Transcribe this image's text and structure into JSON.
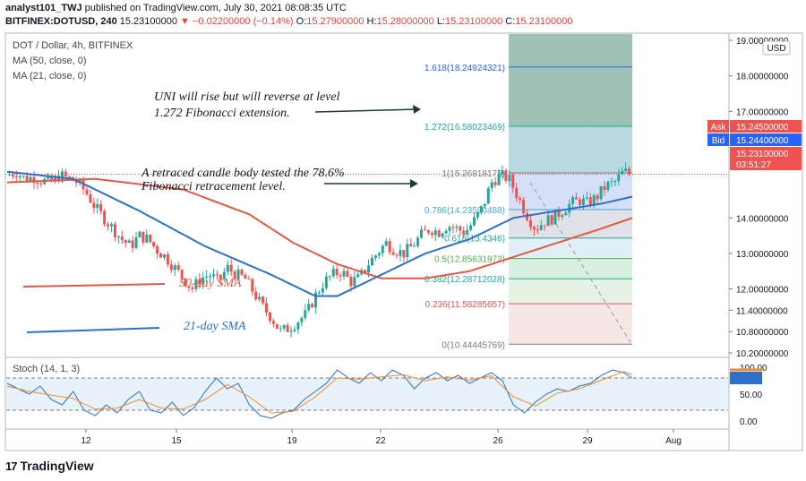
{
  "header": {
    "author": "analyst101_TWJ",
    "published_text": "published on TradingView.com, July 30, 2021 08:08:35 UTC",
    "symbol": "BITFINEX:DOTUSD, 240",
    "price": "15.23100000",
    "change": "▼ −0.02200000 (−0.14%)",
    "ohlc": {
      "o_label": "O:",
      "o": "15.27900000",
      "h_label": "H:",
      "h": "15.28000000",
      "l_label": "L:",
      "l": "15.23100000",
      "c_label": "C:",
      "c": "15.23100000"
    }
  },
  "legend": {
    "title": "DOT / Dollar, 4h, BITFINEX",
    "ma50": "MA (50, close, 0)",
    "ma21": "MA (21, close, 0)"
  },
  "annotations": {
    "uni_line1": "UNI will rise but will reverse at level",
    "uni_line2": "1.272 Fibonacci extension.",
    "retr_line1": "A retraced candle body tested the 78.6%",
    "retr_line2": "Fibonacci retracement level.",
    "sma50": "50-day SMA",
    "sma21": "21-day SMA"
  },
  "price_axis": {
    "currency": "USD",
    "ticks": [
      "19.00000000",
      "18.00000000",
      "17.00000000",
      "15.23100000",
      "14.00000000",
      "13.00000000",
      "12.00000000",
      "11.40000000",
      "10.80000000",
      "10.20000000"
    ],
    "ask_label": "Ask",
    "ask": "15.24500000",
    "bid_label": "Bid",
    "bid": "15.24400000",
    "last": "15.23100000",
    "countdown": "03:51:27"
  },
  "stoch": {
    "title": "Stoch (14, 1, 3)",
    "ticks": [
      "100.00",
      "50.00",
      "0.00"
    ]
  },
  "time_axis": [
    "12",
    "15",
    "19",
    "22",
    "26",
    "29",
    "Aug"
  ],
  "logo": {
    "mark": "17",
    "text": "TradingView"
  },
  "colors": {
    "up": "#26a69a",
    "down": "#ef5350",
    "ma50": "#e05a48",
    "ma21": "#2d6fcb",
    "stoch_k": "#2d6fcb",
    "stoch_d": "#f08b2c"
  },
  "chart_data": {
    "type": "candlestick",
    "x_ticks": [
      "12",
      "15",
      "19",
      "22",
      "26",
      "29",
      "Aug"
    ],
    "y_range": [
      10.1,
      19.0
    ],
    "fibonacci": [
      {
        "level": "1.618",
        "price": 18.24924321,
        "label": "1.618(18.24924321)"
      },
      {
        "level": "1.272",
        "price": 16.58023469,
        "label": "1.272(16.58023469)"
      },
      {
        "level": "1",
        "price": 15.26818175,
        "label": "1(15.26818175)"
      },
      {
        "level": "0.786",
        "price": 14.23590488,
        "label": "0.786(14.23590488)"
      },
      {
        "level": "0.618",
        "price": 13.4346,
        "label": "0.618(13.4346)"
      },
      {
        "level": "0.5",
        "price": 12.85631972,
        "label": "0.5(12.85631972)"
      },
      {
        "level": "0.382",
        "price": 12.28712028,
        "label": "0.382(12.28712028)"
      },
      {
        "level": "0.236",
        "price": 11.58285657,
        "label": "0.236(11.58285657)"
      },
      {
        "level": "0",
        "price": 10.44445769,
        "label": "0(10.44445769)"
      }
    ],
    "close_path": [
      [
        0,
        15.2
      ],
      [
        4,
        15.3
      ],
      [
        8,
        15.1
      ],
      [
        12,
        15.15
      ],
      [
        16,
        15.05
      ],
      [
        20,
        15.0
      ],
      [
        24,
        15.2
      ],
      [
        28,
        15.1
      ],
      [
        32,
        15.0
      ],
      [
        36,
        14.7
      ],
      [
        40,
        14.3
      ],
      [
        44,
        14.0
      ],
      [
        48,
        13.7
      ],
      [
        52,
        13.4
      ],
      [
        56,
        13.2
      ],
      [
        60,
        13.5
      ],
      [
        64,
        13.4
      ],
      [
        68,
        13.1
      ],
      [
        72,
        12.9
      ],
      [
        76,
        12.6
      ],
      [
        80,
        12.3
      ],
      [
        84,
        12.0
      ],
      [
        88,
        12.3
      ],
      [
        92,
        12.4
      ],
      [
        96,
        12.2
      ],
      [
        100,
        12.6
      ],
      [
        104,
        12.4
      ],
      [
        108,
        12.3
      ],
      [
        112,
        11.9
      ],
      [
        116,
        11.5
      ],
      [
        120,
        11.2
      ],
      [
        124,
        10.8
      ],
      [
        128,
        10.9
      ],
      [
        132,
        11.1
      ],
      [
        136,
        11.3
      ],
      [
        140,
        11.8
      ],
      [
        144,
        12.2
      ],
      [
        148,
        12.4
      ],
      [
        152,
        12.5
      ],
      [
        156,
        12.2
      ],
      [
        160,
        12.3
      ],
      [
        164,
        12.7
      ],
      [
        168,
        13.0
      ],
      [
        172,
        13.3
      ],
      [
        176,
        13.1
      ],
      [
        180,
        13.0
      ],
      [
        184,
        13.2
      ],
      [
        188,
        13.5
      ],
      [
        192,
        13.7
      ],
      [
        196,
        13.6
      ],
      [
        200,
        13.8
      ],
      [
        204,
        13.7
      ],
      [
        208,
        13.6
      ],
      [
        212,
        13.9
      ],
      [
        216,
        14.3
      ],
      [
        220,
        15.0
      ],
      [
        224,
        15.2
      ],
      [
        228,
        15.1
      ],
      [
        232,
        14.6
      ],
      [
        236,
        14.1
      ],
      [
        240,
        13.7
      ],
      [
        244,
        13.9
      ],
      [
        248,
        14.0
      ],
      [
        252,
        14.2
      ],
      [
        256,
        14.4
      ],
      [
        260,
        14.5
      ],
      [
        264,
        14.4
      ],
      [
        268,
        14.6
      ],
      [
        272,
        14.9
      ],
      [
        276,
        15.0
      ],
      [
        280,
        15.3
      ],
      [
        284,
        15.23
      ]
    ],
    "ma50_path": [
      [
        0,
        15.0
      ],
      [
        40,
        15.1
      ],
      [
        80,
        14.8
      ],
      [
        110,
        14.1
      ],
      [
        130,
        13.3
      ],
      [
        150,
        12.7
      ],
      [
        170,
        12.3
      ],
      [
        190,
        12.3
      ],
      [
        210,
        12.5
      ],
      [
        230,
        12.9
      ],
      [
        250,
        13.3
      ],
      [
        270,
        13.7
      ],
      [
        284,
        14.0
      ]
    ],
    "ma21_path": [
      [
        0,
        15.3
      ],
      [
        30,
        15.1
      ],
      [
        60,
        14.2
      ],
      [
        90,
        13.2
      ],
      [
        120,
        12.4
      ],
      [
        140,
        11.8
      ],
      [
        150,
        11.8
      ],
      [
        170,
        12.4
      ],
      [
        190,
        13.0
      ],
      [
        210,
        13.4
      ],
      [
        230,
        14.0
      ],
      [
        250,
        14.2
      ],
      [
        270,
        14.4
      ],
      [
        284,
        14.6
      ]
    ],
    "stoch_k": [
      [
        0,
        70
      ],
      [
        5,
        60
      ],
      [
        10,
        50
      ],
      [
        15,
        65
      ],
      [
        20,
        40
      ],
      [
        25,
        30
      ],
      [
        30,
        55
      ],
      [
        35,
        20
      ],
      [
        40,
        10
      ],
      [
        45,
        30
      ],
      [
        50,
        15
      ],
      [
        55,
        40
      ],
      [
        60,
        55
      ],
      [
        65,
        20
      ],
      [
        70,
        15
      ],
      [
        75,
        35
      ],
      [
        80,
        10
      ],
      [
        85,
        25
      ],
      [
        90,
        55
      ],
      [
        95,
        80
      ],
      [
        100,
        60
      ],
      [
        105,
        70
      ],
      [
        110,
        30
      ],
      [
        115,
        10
      ],
      [
        120,
        5
      ],
      [
        125,
        15
      ],
      [
        130,
        20
      ],
      [
        135,
        40
      ],
      [
        140,
        55
      ],
      [
        145,
        70
      ],
      [
        150,
        95
      ],
      [
        155,
        80
      ],
      [
        160,
        70
      ],
      [
        165,
        90
      ],
      [
        170,
        75
      ],
      [
        175,
        95
      ],
      [
        180,
        85
      ],
      [
        185,
        60
      ],
      [
        190,
        80
      ],
      [
        195,
        90
      ],
      [
        200,
        75
      ],
      [
        205,
        85
      ],
      [
        210,
        70
      ],
      [
        215,
        80
      ],
      [
        220,
        90
      ],
      [
        225,
        75
      ],
      [
        230,
        30
      ],
      [
        235,
        15
      ],
      [
        240,
        35
      ],
      [
        245,
        50
      ],
      [
        250,
        60
      ],
      [
        255,
        55
      ],
      [
        260,
        65
      ],
      [
        265,
        70
      ],
      [
        270,
        85
      ],
      [
        275,
        95
      ],
      [
        280,
        90
      ],
      [
        284,
        80
      ]
    ],
    "stoch_d": [
      [
        0,
        65
      ],
      [
        10,
        55
      ],
      [
        20,
        48
      ],
      [
        30,
        42
      ],
      [
        40,
        22
      ],
      [
        50,
        24
      ],
      [
        60,
        40
      ],
      [
        70,
        24
      ],
      [
        80,
        22
      ],
      [
        90,
        40
      ],
      [
        100,
        68
      ],
      [
        110,
        45
      ],
      [
        120,
        15
      ],
      [
        130,
        18
      ],
      [
        140,
        45
      ],
      [
        150,
        80
      ],
      [
        160,
        78
      ],
      [
        170,
        82
      ],
      [
        180,
        86
      ],
      [
        190,
        75
      ],
      [
        200,
        82
      ],
      [
        210,
        76
      ],
      [
        220,
        84
      ],
      [
        230,
        45
      ],
      [
        240,
        28
      ],
      [
        250,
        52
      ],
      [
        260,
        60
      ],
      [
        270,
        76
      ],
      [
        280,
        92
      ],
      [
        284,
        86
      ]
    ],
    "stoch_range": [
      0,
      100
    ]
  }
}
